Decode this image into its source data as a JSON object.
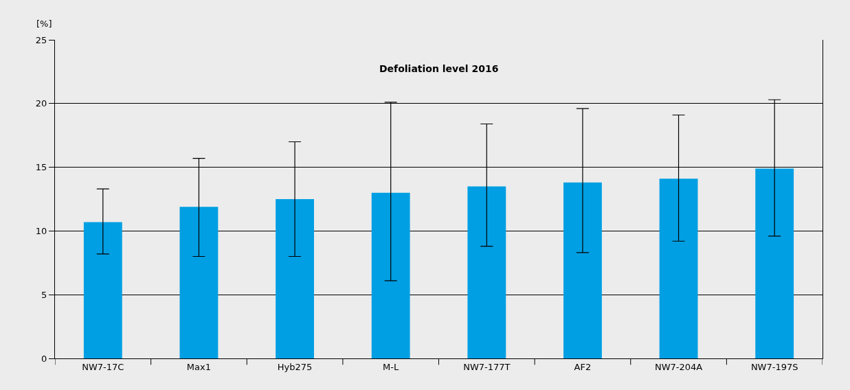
{
  "chart_data": {
    "type": "bar",
    "title": "Defoliation level 2016",
    "ylabel": "[%]",
    "categories": [
      "NW7-17C",
      "Max1",
      "Hyb275",
      "M-L",
      "NW7-177T",
      "AF2",
      "NW7-204A",
      "NW7-197S"
    ],
    "values": [
      10.7,
      11.9,
      12.5,
      13.0,
      13.5,
      13.8,
      14.1,
      14.9
    ],
    "errors": [
      [
        8.2,
        13.3
      ],
      [
        8.0,
        15.7
      ],
      [
        8.0,
        17.0
      ],
      [
        6.1,
        20.1
      ],
      [
        8.8,
        18.4
      ],
      [
        8.3,
        19.6
      ],
      [
        9.2,
        19.1
      ],
      [
        9.6,
        20.3
      ]
    ],
    "color": "#009fe3",
    "ylim": [
      0,
      25
    ],
    "yticks": [
      0,
      5,
      10,
      15,
      20,
      25
    ],
    "grid": "y",
    "legend": false
  }
}
